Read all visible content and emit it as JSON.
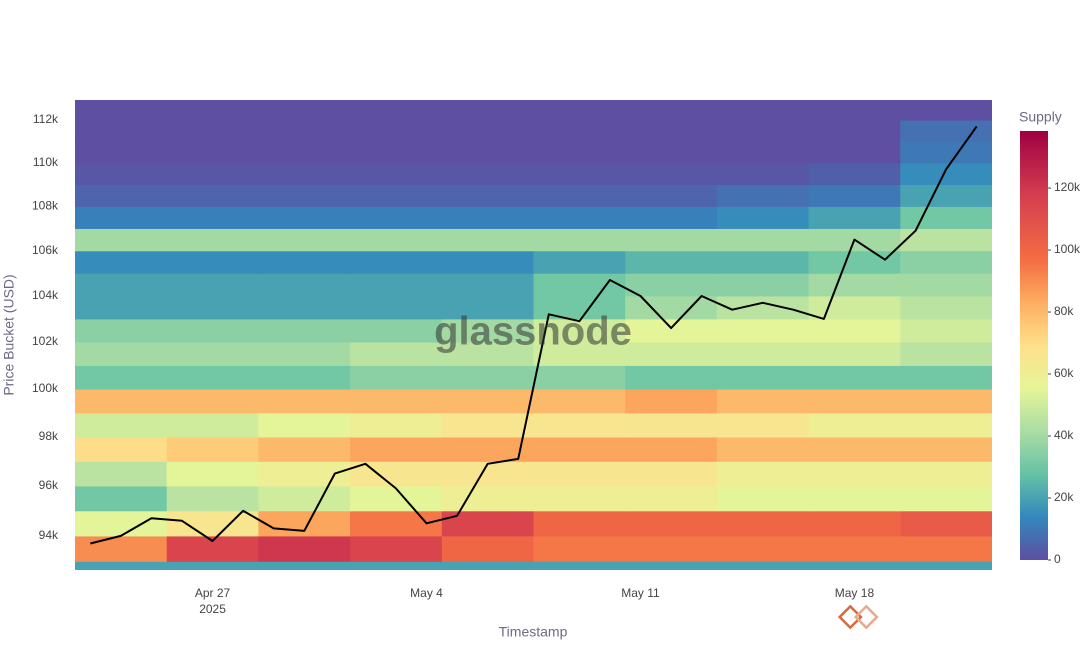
{
  "chart_data": {
    "type": "heatmap",
    "y_axis_label": "Price Bucket (USD)",
    "x_axis_label": "Timestamp",
    "colorbar_title": "Supply",
    "watermark": "glassnode",
    "xlim": [
      "2025-04-22 12:00",
      "2025-05-22 12:00"
    ],
    "xticks": [
      {
        "value": "2025-04-27",
        "label": "Apr 27"
      },
      {
        "value": "2025-05-04",
        "label": "May 4"
      },
      {
        "value": "2025-05-11",
        "label": "May 11"
      },
      {
        "value": "2025-05-18",
        "label": "May 18"
      }
    ],
    "x_year_label": "2025",
    "log_y": true,
    "ylim": [
      92660,
      112950
    ],
    "yticks": [
      {
        "value": 94000,
        "label": "94k"
      },
      {
        "value": 96000,
        "label": "96k"
      },
      {
        "value": 98000,
        "label": "98k"
      },
      {
        "value": 100000,
        "label": "100k"
      },
      {
        "value": 102000,
        "label": "102k"
      },
      {
        "value": 104000,
        "label": "104k"
      },
      {
        "value": 106000,
        "label": "106k"
      },
      {
        "value": 108000,
        "label": "108k"
      },
      {
        "value": 110000,
        "label": "110k"
      },
      {
        "value": 112000,
        "label": "112k"
      }
    ],
    "zlim": [
      0,
      138400
    ],
    "zticks": [
      0,
      {
        "value": 20000,
        "label": "20k"
      },
      {
        "value": 40000,
        "label": "40k"
      },
      {
        "value": 60000,
        "label": "60k"
      },
      {
        "value": 80000,
        "label": "80k"
      },
      {
        "value": 100000,
        "label": "100k"
      },
      {
        "value": 120000,
        "label": "120k"
      }
    ],
    "colorscale": [
      [
        0,
        "#5e4fa2"
      ],
      [
        0.1,
        "#3288bd"
      ],
      [
        0.2,
        "#66c2a5"
      ],
      [
        0.3,
        "#abdda4"
      ],
      [
        0.4,
        "#e6f598"
      ],
      [
        0.5,
        "#fee08b"
      ],
      [
        0.6,
        "#fdae61"
      ],
      [
        0.7,
        "#f46d43"
      ],
      [
        0.85,
        "#d53e4f"
      ],
      [
        1,
        "#9e0142"
      ]
    ],
    "heatmap": {
      "x": [
        "2025-04-24",
        "2025-04-27",
        "2025-04-30",
        "2025-05-03",
        "2025-05-06",
        "2025-05-09",
        "2025-05-12",
        "2025-05-15",
        "2025-05-18",
        "2025-05-21"
      ],
      "y": [
        92500,
        93500,
        94500,
        95500,
        96500,
        97500,
        98500,
        99500,
        100500,
        101500,
        102500,
        103500,
        104500,
        105500,
        106500,
        107500,
        108500,
        109500,
        110500,
        111500,
        112500
      ],
      "z": [
        [
          20000,
          20000,
          20000,
          20000,
          20000,
          20000,
          20000,
          20000,
          20000,
          20000
        ],
        [
          90000,
          115000,
          120000,
          115000,
          100000,
          95000,
          95000,
          95000,
          95000,
          95000
        ],
        [
          55000,
          65000,
          85000,
          95000,
          115000,
          100000,
          100000,
          100000,
          100000,
          105000
        ],
        [
          30000,
          45000,
          50000,
          55000,
          60000,
          60000,
          60000,
          55000,
          55000,
          55000
        ],
        [
          45000,
          55000,
          60000,
          65000,
          65000,
          65000,
          65000,
          60000,
          60000,
          60000
        ],
        [
          70000,
          75000,
          80000,
          85000,
          85000,
          85000,
          85000,
          80000,
          80000,
          80000
        ],
        [
          50000,
          50000,
          55000,
          60000,
          65000,
          65000,
          65000,
          65000,
          60000,
          60000
        ],
        [
          80000,
          80000,
          80000,
          80000,
          80000,
          80000,
          85000,
          80000,
          80000,
          80000
        ],
        [
          30000,
          30000,
          30000,
          35000,
          35000,
          35000,
          30000,
          30000,
          30000,
          30000
        ],
        [
          40000,
          40000,
          40000,
          45000,
          45000,
          50000,
          50000,
          50000,
          50000,
          45000
        ],
        [
          35000,
          35000,
          35000,
          35000,
          40000,
          50000,
          55000,
          55000,
          55000,
          50000
        ],
        [
          20000,
          20000,
          20000,
          20000,
          20000,
          30000,
          40000,
          45000,
          50000,
          45000
        ],
        [
          20000,
          20000,
          20000,
          20000,
          20000,
          30000,
          35000,
          35000,
          40000,
          40000
        ],
        [
          15000,
          15000,
          15000,
          15000,
          15000,
          20000,
          25000,
          25000,
          30000,
          35000
        ],
        [
          40000,
          40000,
          40000,
          40000,
          40000,
          40000,
          40000,
          40000,
          40000,
          45000
        ],
        [
          12000,
          12000,
          12000,
          12000,
          12000,
          12000,
          12000,
          15000,
          20000,
          30000
        ],
        [
          5000,
          5000,
          5000,
          5000,
          5000,
          5000,
          5000,
          8000,
          10000,
          20000
        ],
        [
          2000,
          2000,
          2000,
          2000,
          2000,
          2000,
          2000,
          2000,
          4000,
          15000
        ],
        [
          0,
          0,
          0,
          0,
          0,
          0,
          0,
          0,
          0,
          10000
        ],
        [
          0,
          0,
          0,
          0,
          0,
          0,
          0,
          0,
          0,
          8000
        ],
        [
          0,
          0,
          0,
          0,
          0,
          0,
          0,
          0,
          0,
          0
        ]
      ]
    },
    "line": {
      "color": "#000000",
      "x": [
        "2025-04-23",
        "2025-04-24",
        "2025-04-25",
        "2025-04-26",
        "2025-04-27",
        "2025-04-28",
        "2025-04-29",
        "2025-04-30",
        "2025-05-01",
        "2025-05-02",
        "2025-05-03",
        "2025-05-04",
        "2025-05-05",
        "2025-05-06",
        "2025-05-07",
        "2025-05-08",
        "2025-05-09",
        "2025-05-10",
        "2025-05-11",
        "2025-05-12",
        "2025-05-13",
        "2025-05-14",
        "2025-05-15",
        "2025-05-16",
        "2025-05-17",
        "2025-05-18",
        "2025-05-19",
        "2025-05-20",
        "2025-05-21",
        "2025-05-22"
      ],
      "values": [
        93700,
        94000,
        94700,
        94600,
        93800,
        95000,
        94300,
        94200,
        96500,
        96900,
        95900,
        94500,
        94800,
        96900,
        97100,
        103200,
        102900,
        104700,
        104000,
        102600,
        104000,
        103400,
        103700,
        103400,
        103000,
        106500,
        105600,
        106900,
        109700,
        111700
      ]
    }
  }
}
